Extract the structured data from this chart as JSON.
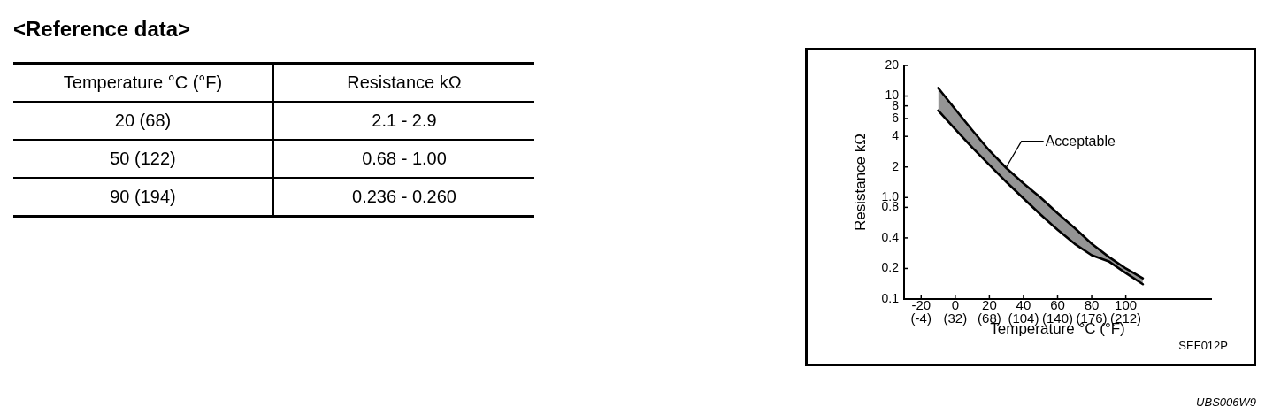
{
  "chart_data": [
    {
      "type": "other",
      "title": "<Reference data>",
      "annotations": [
        "Temperature °C (°F)",
        "Resistance kΩ",
        "20 (68)",
        "2.1 - 2.9",
        "50 (122)",
        "0.68 - 1.00",
        "90 (194)",
        "0.236 - 0.260"
      ]
    },
    {
      "type": "line",
      "xlabel": "Temperature °C (°F)",
      "ylabel": "Resistance kΩ",
      "log": "y",
      "x": [
        -10,
        0,
        10,
        20,
        30,
        40,
        50,
        60,
        70,
        80,
        90,
        100,
        110
      ],
      "series": [
        {
          "color": "#000000",
          "values": [
            7.2,
            4.7,
            3.1,
            2.1,
            1.42,
            0.98,
            0.68,
            0.48,
            0.35,
            0.27,
            0.235,
            0.18,
            0.14
          ]
        },
        {
          "type": "area",
          "color": "#000000",
          "values": [
            12,
            7.4,
            4.6,
            2.9,
            1.95,
            1.38,
            1.0,
            0.7,
            0.5,
            0.35,
            0.26,
            0.2,
            0.16
          ]
        }
      ],
      "xlim": [
        -30,
        150
      ],
      "xticks": [
        -20,
        0,
        20,
        40,
        60,
        80,
        100
      ],
      "x2lim": [
        -22,
        302
      ],
      "x2ticks": [
        {
          "value": -4,
          "label": "(-4)"
        },
        {
          "value": 32,
          "label": "(32)"
        },
        {
          "value": 68,
          "label": "(68)"
        },
        {
          "value": 104,
          "label": "(104)"
        },
        {
          "value": 140,
          "label": "(140)"
        },
        {
          "value": 176,
          "label": "(176)"
        },
        {
          "value": 212,
          "label": "(212)"
        }
      ],
      "ylim": [
        0.1,
        20
      ],
      "yticks": [
        0.1,
        0.2,
        0.4,
        0.8,
        {
          "value": 1,
          "label": "1.0"
        },
        2,
        4,
        6,
        8,
        10,
        20
      ],
      "annotations": [
        {
          "text": "Acceptable",
          "x": 30,
          "y": 2
        },
        "SEF012P",
        "UBS006W9"
      ]
    }
  ]
}
